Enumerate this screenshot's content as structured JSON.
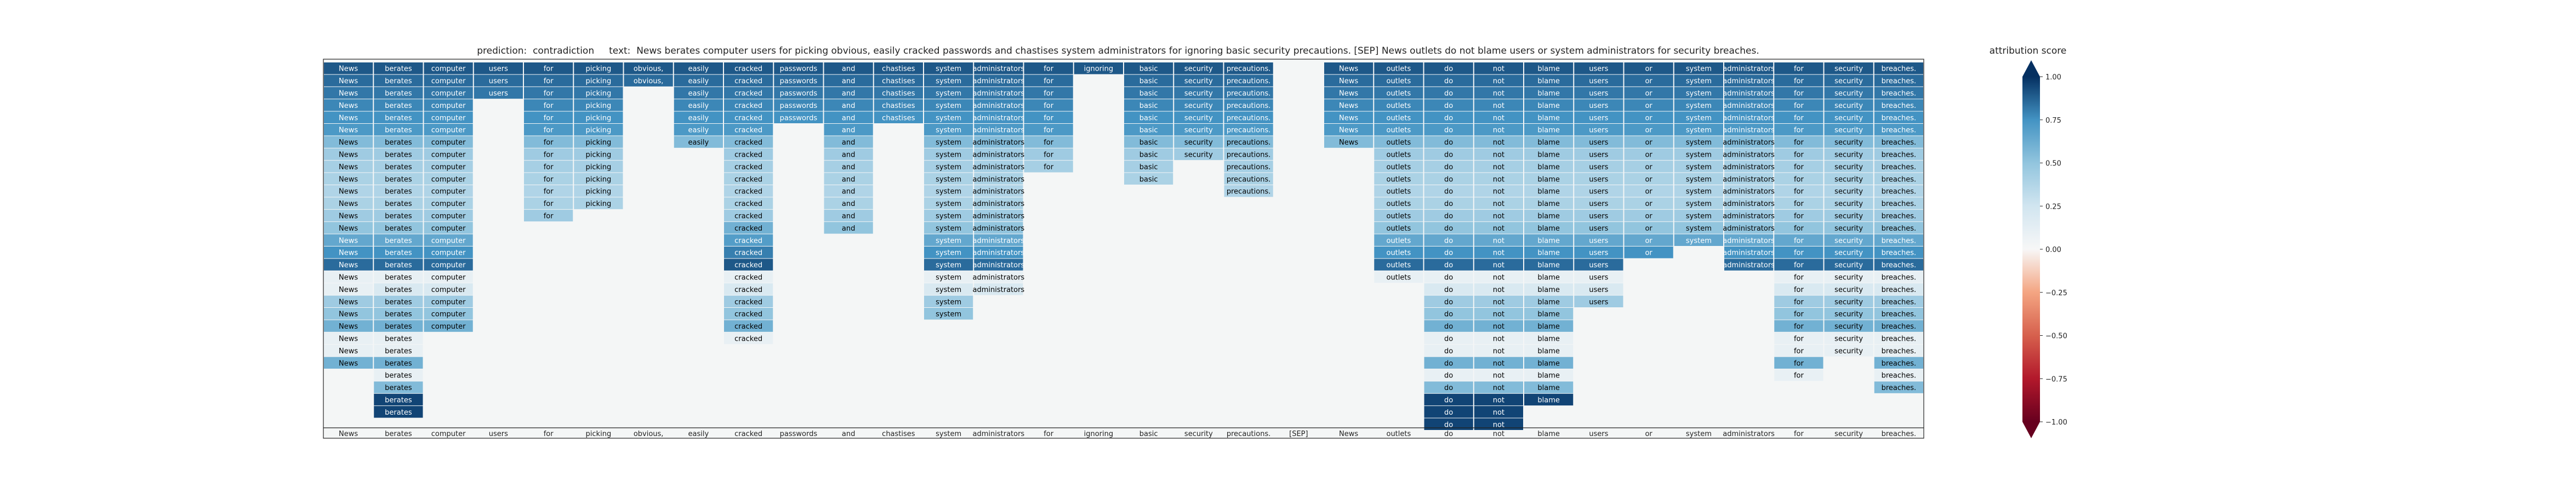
{
  "figure": {
    "title_prefix": "prediction:",
    "prediction": "contradiction",
    "text_prefix": "text:",
    "text": "News berates computer users for picking obvious, easily cracked passwords and chastises system administrators for ignoring basic security precautions. [SEP] News outlets do not blame users or system administrators for security breaches.",
    "colorbar_title": "attribution score"
  },
  "chart_data": {
    "type": "heatmap",
    "title": "prediction:  contradiction     text:  News berates computer users for picking obvious, easily cracked passwords and chastises system administrators for ignoring basic security precautions. [SEP] News outlets do not blame users or system administrators for security breaches.",
    "tokens": [
      "News",
      "berates",
      "computer",
      "users",
      "for",
      "picking",
      "obvious,",
      "easily",
      "cracked",
      "passwords",
      "and",
      "chastises",
      "system",
      "administrators",
      "for",
      "ignoring",
      "basic",
      "security",
      "precautions.",
      "[SEP]",
      "News",
      "outlets",
      "do",
      "not",
      "blame",
      "users",
      "or",
      "system",
      "administrators",
      "for",
      "security",
      "breaches."
    ],
    "colorbar": {
      "label": "attribution score",
      "range": [
        -1.0,
        1.0
      ],
      "ticks": [
        "-1.00",
        "-0.75",
        "-0.50",
        "-0.25",
        "0.00",
        "0.25",
        "0.50",
        "0.75",
        "1.00"
      ]
    },
    "rows": [
      {
        "vals": {
          "0": 0.9,
          "1": 0.9,
          "2": 0.9,
          "3": 0.9,
          "4": 0.9,
          "5": 0.9,
          "6": 0.9,
          "7": 0.9,
          "8": 0.9,
          "9": 0.9,
          "10": 0.9,
          "11": 0.9,
          "12": 0.9,
          "13": 0.9,
          "14": 0.9,
          "15": 0.9,
          "16": 0.9,
          "17": 0.9,
          "18": 0.9,
          "20": 0.9,
          "21": 0.9,
          "22": 0.9,
          "23": 0.9,
          "24": 0.9,
          "25": 0.9,
          "26": 0.9,
          "27": 0.9,
          "28": 0.9,
          "29": 0.9,
          "30": 0.9,
          "31": 0.9
        }
      },
      {
        "vals": {
          "0": 0.85,
          "1": 0.85,
          "2": 0.85,
          "3": 0.85,
          "4": 0.85,
          "5": 0.85,
          "6": 0.85,
          "7": 0.85,
          "8": 0.85,
          "9": 0.85,
          "10": 0.85,
          "11": 0.85,
          "12": 0.85,
          "13": 0.85,
          "14": 0.85,
          "16": 0.85,
          "17": 0.85,
          "18": 0.85,
          "20": 0.85,
          "21": 0.85,
          "22": 0.85,
          "23": 0.85,
          "24": 0.85,
          "25": 0.85,
          "26": 0.85,
          "27": 0.85,
          "28": 0.85,
          "29": 0.85,
          "30": 0.85,
          "31": 0.85
        }
      },
      {
        "vals": {
          "0": 0.82,
          "1": 0.82,
          "2": 0.82,
          "3": 0.82,
          "4": 0.82,
          "5": 0.82,
          "7": 0.82,
          "8": 0.82,
          "9": 0.82,
          "10": 0.82,
          "11": 0.82,
          "12": 0.82,
          "13": 0.82,
          "14": 0.82,
          "16": 0.82,
          "17": 0.82,
          "18": 0.82,
          "20": 0.82,
          "21": 0.82,
          "22": 0.82,
          "23": 0.82,
          "24": 0.82,
          "25": 0.82,
          "26": 0.82,
          "27": 0.82,
          "28": 0.82,
          "29": 0.82,
          "30": 0.82,
          "31": 0.82
        }
      },
      {
        "vals": {
          "0": 0.78,
          "1": 0.78,
          "2": 0.78,
          "4": 0.78,
          "5": 0.78,
          "7": 0.78,
          "8": 0.78,
          "9": 0.78,
          "10": 0.78,
          "11": 0.78,
          "12": 0.78,
          "13": 0.78,
          "14": 0.78,
          "16": 0.78,
          "17": 0.78,
          "18": 0.78,
          "20": 0.78,
          "21": 0.78,
          "22": 0.78,
          "23": 0.78,
          "24": 0.78,
          "25": 0.78,
          "26": 0.78,
          "27": 0.78,
          "28": 0.78,
          "29": 0.78,
          "30": 0.78,
          "31": 0.78
        }
      },
      {
        "vals": {
          "0": 0.75,
          "1": 0.75,
          "2": 0.75,
          "4": 0.75,
          "5": 0.75,
          "7": 0.75,
          "8": 0.75,
          "9": 0.75,
          "10": 0.75,
          "11": 0.75,
          "12": 0.75,
          "13": 0.75,
          "14": 0.75,
          "16": 0.75,
          "17": 0.75,
          "18": 0.75,
          "20": 0.75,
          "21": 0.75,
          "22": 0.75,
          "23": 0.75,
          "24": 0.75,
          "25": 0.75,
          "26": 0.75,
          "27": 0.75,
          "28": 0.75,
          "29": 0.75,
          "30": 0.75,
          "31": 0.75
        }
      },
      {
        "vals": {
          "0": 0.72,
          "1": 0.72,
          "2": 0.72,
          "4": 0.72,
          "5": 0.72,
          "7": 0.72,
          "8": 0.72,
          "10": 0.72,
          "12": 0.72,
          "13": 0.72,
          "14": 0.72,
          "16": 0.72,
          "17": 0.72,
          "18": 0.72,
          "20": 0.72,
          "21": 0.72,
          "22": 0.72,
          "23": 0.72,
          "24": 0.72,
          "25": 0.72,
          "26": 0.72,
          "27": 0.72,
          "28": 0.72,
          "29": 0.72,
          "30": 0.72,
          "31": 0.72
        }
      },
      {
        "vals": {
          "0": 0.55,
          "1": 0.55,
          "2": 0.55,
          "4": 0.55,
          "5": 0.55,
          "7": 0.55,
          "8": 0.55,
          "10": 0.55,
          "12": 0.55,
          "13": 0.55,
          "14": 0.55,
          "16": 0.55,
          "17": 0.55,
          "18": 0.55,
          "20": 0.55,
          "21": 0.55,
          "22": 0.55,
          "23": 0.55,
          "24": 0.55,
          "25": 0.55,
          "26": 0.55,
          "27": 0.55,
          "28": 0.55,
          "29": 0.55,
          "30": 0.55,
          "31": 0.55
        }
      },
      {
        "vals": {
          "0": 0.45,
          "1": 0.45,
          "2": 0.45,
          "4": 0.45,
          "5": 0.45,
          "8": 0.45,
          "10": 0.45,
          "12": 0.45,
          "13": 0.45,
          "14": 0.45,
          "16": 0.45,
          "17": 0.45,
          "18": 0.45,
          "21": 0.45,
          "22": 0.45,
          "23": 0.45,
          "24": 0.45,
          "25": 0.45,
          "26": 0.45,
          "27": 0.45,
          "28": 0.45,
          "29": 0.45,
          "30": 0.45,
          "31": 0.45
        }
      },
      {
        "vals": {
          "0": 0.42,
          "1": 0.42,
          "2": 0.42,
          "4": 0.42,
          "5": 0.42,
          "8": 0.42,
          "10": 0.42,
          "12": 0.42,
          "13": 0.42,
          "14": 0.42,
          "16": 0.42,
          "18": 0.42,
          "21": 0.42,
          "22": 0.42,
          "23": 0.42,
          "24": 0.42,
          "25": 0.42,
          "26": 0.42,
          "27": 0.42,
          "28": 0.42,
          "29": 0.42,
          "30": 0.42,
          "31": 0.42
        }
      },
      {
        "vals": {
          "0": 0.4,
          "1": 0.4,
          "2": 0.4,
          "4": 0.4,
          "5": 0.4,
          "8": 0.4,
          "10": 0.4,
          "12": 0.4,
          "13": 0.4,
          "16": 0.4,
          "18": 0.4,
          "21": 0.4,
          "22": 0.4,
          "23": 0.4,
          "24": 0.4,
          "25": 0.4,
          "26": 0.4,
          "27": 0.4,
          "28": 0.4,
          "29": 0.4,
          "30": 0.4,
          "31": 0.4
        }
      },
      {
        "vals": {
          "0": 0.38,
          "1": 0.38,
          "2": 0.38,
          "4": 0.38,
          "5": 0.38,
          "8": 0.38,
          "10": 0.38,
          "12": 0.38,
          "13": 0.38,
          "18": 0.38,
          "21": 0.38,
          "22": 0.38,
          "23": 0.38,
          "24": 0.38,
          "25": 0.38,
          "26": 0.38,
          "27": 0.38,
          "28": 0.38,
          "29": 0.38,
          "30": 0.38,
          "31": 0.38
        }
      },
      {
        "vals": {
          "0": 0.4,
          "1": 0.4,
          "2": 0.4,
          "4": 0.4,
          "5": 0.4,
          "8": 0.4,
          "10": 0.4,
          "12": 0.4,
          "13": 0.4,
          "21": 0.4,
          "22": 0.4,
          "23": 0.4,
          "24": 0.4,
          "25": 0.4,
          "26": 0.4,
          "27": 0.4,
          "28": 0.4,
          "29": 0.4,
          "30": 0.4,
          "31": 0.4
        }
      },
      {
        "vals": {
          "0": 0.45,
          "1": 0.45,
          "2": 0.45,
          "4": 0.45,
          "8": 0.45,
          "10": 0.45,
          "12": 0.45,
          "13": 0.45,
          "21": 0.45,
          "22": 0.45,
          "23": 0.45,
          "24": 0.45,
          "25": 0.45,
          "26": 0.45,
          "27": 0.45,
          "28": 0.45,
          "29": 0.45,
          "30": 0.45,
          "31": 0.45
        }
      },
      {
        "vals": {
          "0": 0.5,
          "1": 0.5,
          "2": 0.5,
          "8": 0.6,
          "10": 0.5,
          "12": 0.5,
          "13": 0.5,
          "21": 0.5,
          "22": 0.5,
          "23": 0.5,
          "24": 0.5,
          "25": 0.5,
          "26": 0.5,
          "27": 0.5,
          "28": 0.5,
          "29": 0.5,
          "30": 0.5,
          "31": 0.5
        }
      },
      {
        "vals": {
          "0": 0.65,
          "1": 0.65,
          "2": 0.65,
          "8": 0.7,
          "12": 0.65,
          "13": 0.65,
          "21": 0.65,
          "22": 0.65,
          "23": 0.65,
          "24": 0.65,
          "25": 0.65,
          "26": 0.65,
          "27": 0.65,
          "28": 0.65,
          "29": 0.65,
          "30": 0.65,
          "31": 0.65
        }
      },
      {
        "vals": {
          "0": 0.75,
          "1": 0.75,
          "2": 0.75,
          "8": 0.8,
          "12": 0.75,
          "13": 0.75,
          "21": 0.75,
          "22": 0.75,
          "23": 0.75,
          "24": 0.75,
          "25": 0.75,
          "26": 0.75,
          "28": 0.75,
          "29": 0.75,
          "30": 0.75,
          "31": 0.75
        }
      },
      {
        "vals": {
          "0": 0.85,
          "1": 0.85,
          "2": 0.85,
          "8": 0.9,
          "12": 0.85,
          "13": 0.85,
          "21": 0.85,
          "22": 0.85,
          "23": 0.85,
          "24": 0.85,
          "25": 0.85,
          "28": 0.85,
          "29": 0.85,
          "30": 0.85,
          "31": 0.85
        }
      },
      {
        "vals": {
          "0": 0.1,
          "1": 0.1,
          "2": 0.1,
          "8": 0.1,
          "12": 0.1,
          "13": 0.1,
          "21": 0.1,
          "22": 0.1,
          "23": 0.1,
          "24": 0.1,
          "25": 0.1,
          "29": 0.1,
          "30": 0.1,
          "31": 0.1
        }
      },
      {
        "vals": {
          "0": 0.1,
          "1": 0.2,
          "2": 0.2,
          "8": 0.2,
          "12": 0.2,
          "13": 0.2,
          "22": 0.2,
          "23": 0.2,
          "24": 0.2,
          "25": 0.2,
          "29": 0.2,
          "30": 0.2,
          "31": 0.2
        }
      },
      {
        "vals": {
          "0": 0.45,
          "1": 0.45,
          "2": 0.45,
          "8": 0.45,
          "12": 0.45,
          "22": 0.45,
          "23": 0.45,
          "24": 0.45,
          "25": 0.45,
          "29": 0.45,
          "30": 0.45,
          "31": 0.45
        }
      },
      {
        "vals": {
          "0": 0.5,
          "1": 0.5,
          "2": 0.5,
          "8": 0.5,
          "12": 0.5,
          "22": 0.5,
          "23": 0.5,
          "24": 0.5,
          "29": 0.5,
          "30": 0.5,
          "31": 0.5
        }
      },
      {
        "vals": {
          "0": 0.6,
          "1": 0.6,
          "2": 0.6,
          "8": 0.6,
          "22": 0.6,
          "23": 0.6,
          "24": 0.6,
          "29": 0.6,
          "30": 0.6,
          "31": 0.6
        }
      },
      {
        "vals": {
          "0": 0.1,
          "1": 0.1,
          "8": 0.1,
          "22": 0.1,
          "23": 0.1,
          "24": 0.1,
          "29": 0.1,
          "30": 0.1,
          "31": 0.1
        }
      },
      {
        "vals": {
          "0": 0.1,
          "1": 0.1,
          "22": 0.1,
          "23": 0.1,
          "24": 0.1,
          "29": 0.1,
          "30": 0.1,
          "31": 0.1
        }
      },
      {
        "vals": {
          "0": 0.6,
          "1": 0.6,
          "22": 0.6,
          "23": 0.6,
          "24": 0.6,
          "29": 0.6,
          "31": 0.6
        }
      },
      {
        "vals": {
          "1": 0.1,
          "22": 0.1,
          "23": 0.1,
          "24": 0.1,
          "29": 0.1,
          "31": 0.1
        }
      },
      {
        "vals": {
          "1": 0.55,
          "22": 0.55,
          "23": 0.55,
          "24": 0.55,
          "31": 0.55
        }
      },
      {
        "vals": {
          "1": 0.95,
          "22": 0.95,
          "23": 0.95,
          "24": 0.95
        }
      },
      {
        "vals": {
          "1": 0.95,
          "22": 0.95,
          "23": 0.95
        }
      },
      {
        "vals": {
          "22": 0.95,
          "23": 0.95
        }
      }
    ]
  }
}
